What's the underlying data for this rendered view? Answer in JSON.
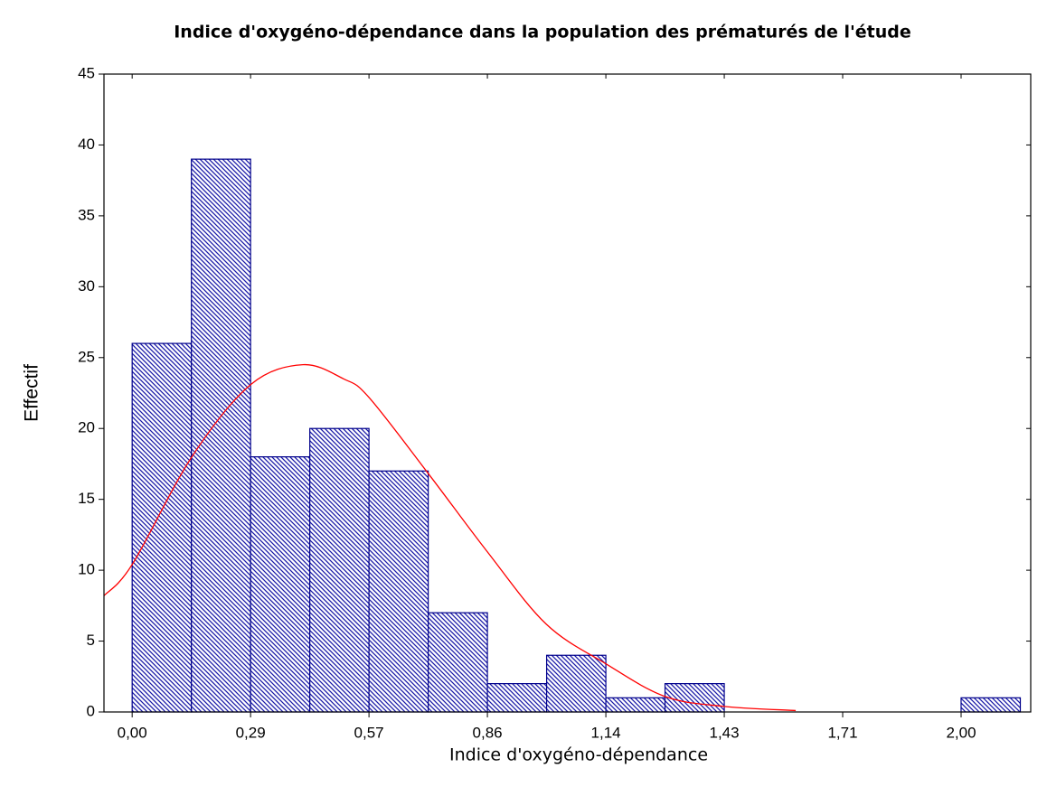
{
  "chart_data": {
    "type": "histogram",
    "title": "Indice d'oxygéno-dépendance dans la population des prématurés de l'étude",
    "x_label": "Indice d'oxygéno-dépendance",
    "y_label": "Effectif",
    "bins": [
      0,
      0.1429,
      0.2857,
      0.4286,
      0.5714,
      0.7143,
      0.8571,
      1.0,
      1.1429,
      1.2857,
      1.4286,
      1.5714,
      1.7143,
      1.8571,
      2.0,
      2.1429
    ],
    "values": [
      26,
      39,
      18,
      20,
      17,
      7,
      2,
      4,
      1,
      2,
      0,
      0,
      0,
      0,
      1
    ],
    "color": "#00008b",
    "curve": {
      "color": "#ff0000",
      "x": [
        -0.068,
        0,
        0.144,
        0.286,
        0.412,
        0.51,
        0.571,
        0.715,
        0.857,
        0.999,
        1.143,
        1.285,
        1.426,
        1.601
      ],
      "values": [
        8.2,
        10.4,
        18,
        23.1,
        24.5,
        23.5,
        22.2,
        16.8,
        11.3,
        6.2,
        3.4,
        1.1,
        0.4,
        0.1
      ]
    },
    "xlim": [
      -0.068,
      2.168
    ],
    "ylim": [
      0,
      45
    ],
    "xticks": [
      {
        "value": 0,
        "label": "0,00"
      },
      {
        "value": 0.2857,
        "label": "0,29"
      },
      {
        "value": 0.5714,
        "label": "0,57"
      },
      {
        "value": 0.8571,
        "label": "0,86"
      },
      {
        "value": 1.1429,
        "label": "1,14"
      },
      {
        "value": 1.4286,
        "label": "1,43"
      },
      {
        "value": 1.7143,
        "label": "1,71"
      },
      {
        "value": 2.0,
        "label": "2,00"
      }
    ],
    "yticks": [
      0,
      5,
      10,
      15,
      20,
      25,
      30,
      35,
      40,
      45
    ]
  }
}
